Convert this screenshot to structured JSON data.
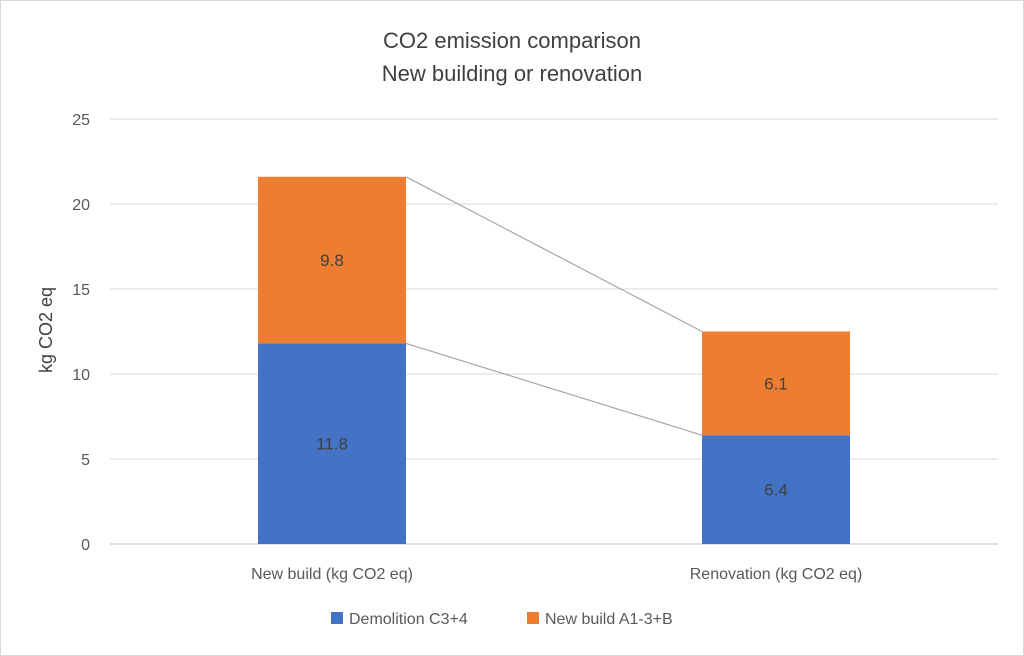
{
  "chart_data": {
    "type": "bar",
    "stacked": true,
    "title": [
      "CO2 emission comparison",
      "New building or renovation"
    ],
    "xlabel": "",
    "ylabel": "kg CO2 eq",
    "ylim": [
      0,
      25
    ],
    "yticks": [
      0,
      5,
      10,
      15,
      20,
      25
    ],
    "grid": true,
    "legend_position": "bottom",
    "categories": [
      "New build (kg CO2 eq)",
      "Renovation (kg CO2 eq)"
    ],
    "series": [
      {
        "name": "Demolition C3+4",
        "values": [
          11.8,
          6.4
        ],
        "color": "#4472c4"
      },
      {
        "name": "New build A1-3+B",
        "values": [
          9.8,
          6.1
        ],
        "color": "#ed7d31"
      }
    ],
    "series_lines": true
  }
}
